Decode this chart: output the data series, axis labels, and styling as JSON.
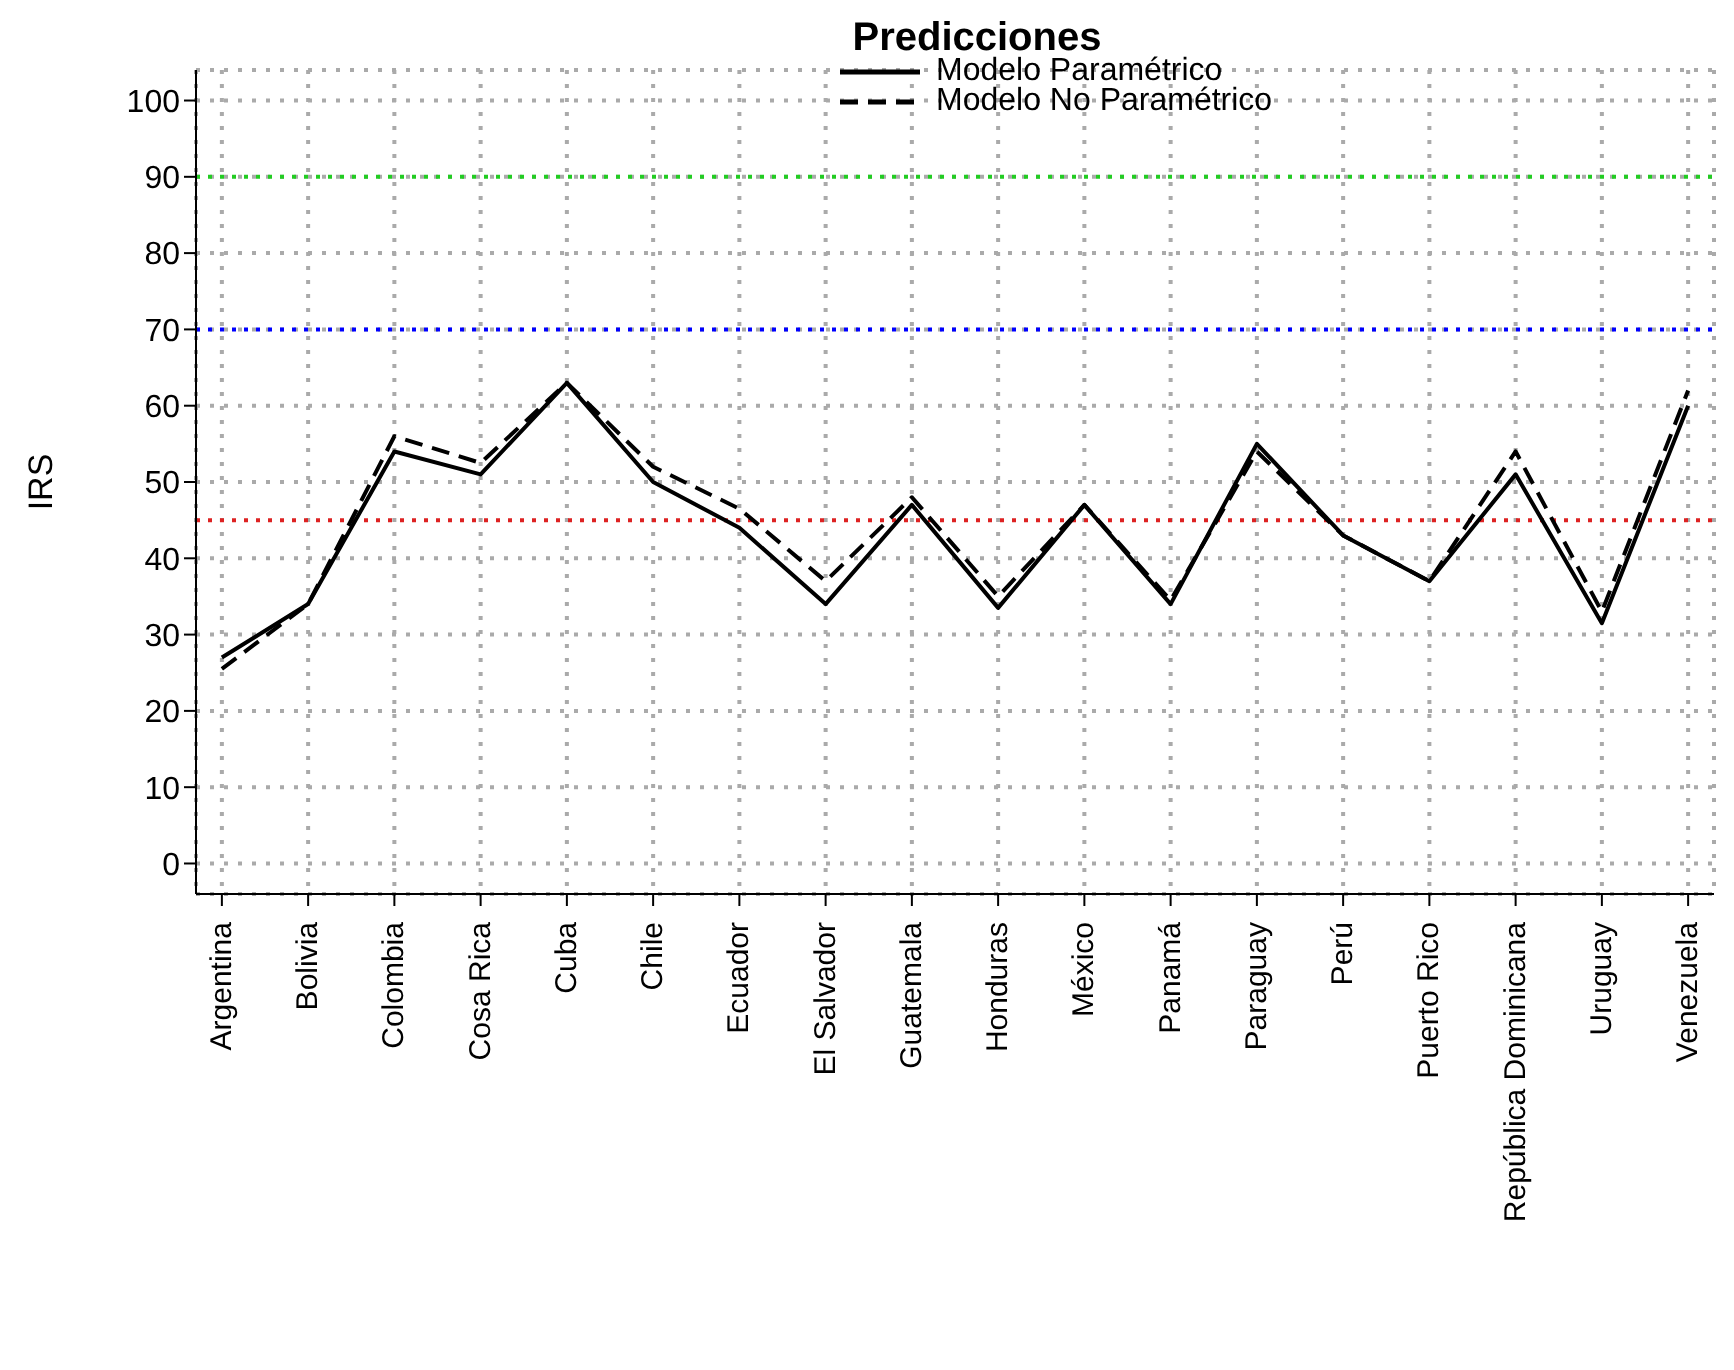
{
  "chart_data": {
    "type": "line",
    "title": "Predicciones",
    "ylabel": "IRS",
    "categories": [
      "Argentina",
      "Bolivia",
      "Colombia",
      "Cosa Rica",
      "Cuba",
      "Chile",
      "Ecuador",
      "El Salvador",
      "Guatemala",
      "Honduras",
      "México",
      "Panamá",
      "Paraguay",
      "Perú",
      "Puerto Rico",
      "República Dominicana",
      "Uruguay",
      "Venezuela"
    ],
    "series": [
      {
        "name": "Modelo Paramétrico",
        "color": "#000000",
        "line_style": "solid",
        "values": [
          27,
          34,
          54,
          51,
          63,
          50,
          44,
          34,
          47,
          33.5,
          47,
          34,
          55,
          43,
          37,
          51,
          31.5,
          60
        ]
      },
      {
        "name": "Modelo No Paramétrico",
        "color": "#000000",
        "line_style": "dashed",
        "values": [
          25.5,
          34,
          56,
          52.5,
          63,
          52,
          46.5,
          37,
          48,
          35,
          47,
          34.5,
          54,
          43,
          37,
          54,
          33,
          62
        ]
      }
    ],
    "ylim": [
      -4,
      104
    ],
    "yticks": [
      0,
      10,
      20,
      30,
      40,
      50,
      60,
      70,
      80,
      90,
      100
    ],
    "ref_lines": [
      {
        "axis": "y",
        "value": 90,
        "label": null,
        "color": "#22cc22",
        "line_style": "dotted"
      },
      {
        "axis": "y",
        "value": 70,
        "label": null,
        "color": "#0000ff",
        "line_style": "dotted"
      },
      {
        "axis": "y",
        "value": 45,
        "label": null,
        "color": "#dd2222",
        "line_style": "dotted"
      }
    ],
    "grid": true,
    "legend": "top",
    "marker": "none"
  }
}
